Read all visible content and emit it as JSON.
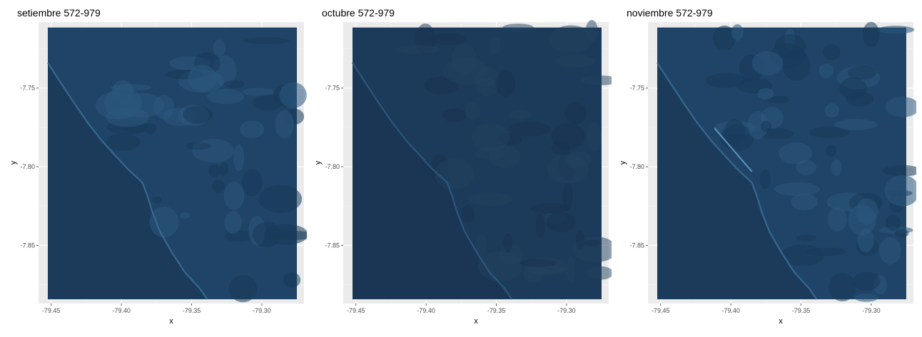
{
  "colors": {
    "panel_background": "#ebebeb",
    "grid_major": "#ffffff",
    "ocean": "#1c3b5b",
    "coast_light": "#3a6b94",
    "land_base": "#1f4467"
  },
  "chart_data": [
    {
      "type": "heatmap",
      "title": "setiembre 572-979",
      "xlabel": "x",
      "ylabel": "y",
      "xlim": [
        -79.459,
        -79.27
      ],
      "ylim": [
        -7.887,
        -7.708
      ],
      "x_ticks": [
        "-79.45",
        "-79.40",
        "-79.35",
        "-79.30"
      ],
      "x_tick_values": [
        -79.45,
        -79.4,
        -79.35,
        -79.3
      ],
      "y_ticks": [
        "-7.75",
        "-7.80",
        "-7.85"
      ],
      "y_tick_values": [
        -7.75,
        -7.8,
        -7.85
      ],
      "raster_extent": {
        "x": [
          -79.4524,
          -79.2751
        ],
        "y": [
          -7.8843,
          -7.7115
        ]
      },
      "grid": true,
      "legend": "none",
      "tone": "medium"
    },
    {
      "type": "heatmap",
      "title": "octubre 572-979",
      "xlabel": "x",
      "ylabel": "y",
      "xlim": [
        -79.459,
        -79.27
      ],
      "ylim": [
        -7.887,
        -7.708
      ],
      "x_ticks": [
        "-79.45",
        "-79.40",
        "-79.35",
        "-79.30"
      ],
      "x_tick_values": [
        -79.45,
        -79.4,
        -79.35,
        -79.3
      ],
      "y_ticks": [
        "-7.75",
        "-7.80",
        "-7.85"
      ],
      "y_tick_values": [
        -7.75,
        -7.8,
        -7.85
      ],
      "raster_extent": {
        "x": [
          -79.4524,
          -79.2751
        ],
        "y": [
          -7.8843,
          -7.7115
        ]
      },
      "grid": true,
      "legend": "none",
      "tone": "dark"
    },
    {
      "type": "heatmap",
      "title": "noviembre 572-979",
      "xlabel": "x",
      "ylabel": "y",
      "xlim": [
        -79.459,
        -79.27
      ],
      "ylim": [
        -7.887,
        -7.708
      ],
      "x_ticks": [
        "-79.45",
        "-79.40",
        "-79.35",
        "-79.30"
      ],
      "x_tick_values": [
        -79.45,
        -79.4,
        -79.35,
        -79.3
      ],
      "y_ticks": [
        "-7.75",
        "-7.80",
        "-7.85"
      ],
      "y_tick_values": [
        -7.75,
        -7.8,
        -7.85
      ],
      "raster_extent": {
        "x": [
          -79.4524,
          -79.2751
        ],
        "y": [
          -7.8843,
          -7.7115
        ]
      },
      "grid": true,
      "legend": "none",
      "tone": "medium"
    }
  ]
}
